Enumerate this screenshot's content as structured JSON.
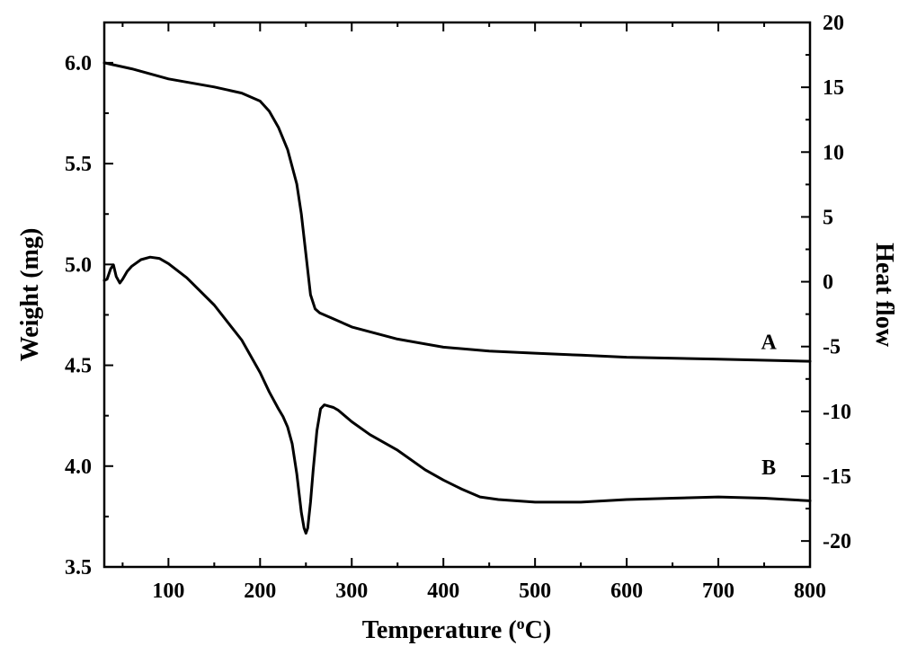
{
  "chart_data": {
    "type": "line",
    "xlabel": "Temperature (",
    "xlabel_sup": "o",
    "xlabel_end": "C)",
    "ylabel_left": "Weight (mg)",
    "ylabel_right": "Heat flow",
    "xlim": [
      30,
      800
    ],
    "ylim_left": [
      3.5,
      6.2
    ],
    "ylim_right": [
      -22,
      20
    ],
    "x_ticks": [
      100,
      200,
      300,
      400,
      500,
      600,
      700,
      800
    ],
    "x_tick_labels": [
      "100",
      "200",
      "300",
      "400",
      "500",
      "600",
      "700",
      "800"
    ],
    "y_left_ticks": [
      3.5,
      4.0,
      4.5,
      5.0,
      5.5,
      6.0
    ],
    "y_left_tick_labels": [
      "3.5",
      "4.0",
      "4.5",
      "5.0",
      "5.5",
      "6.0"
    ],
    "y_right_ticks": [
      -20,
      -15,
      -10,
      -5,
      0,
      5,
      10,
      15,
      20
    ],
    "y_right_tick_labels": [
      "-20",
      "-15",
      "-10",
      "-5",
      "0",
      "5",
      "10",
      "15",
      "20"
    ],
    "grid": false,
    "series": [
      {
        "name": "A",
        "axis": "left",
        "x": [
          30,
          60,
          100,
          150,
          180,
          200,
          210,
          220,
          230,
          240,
          245,
          250,
          255,
          260,
          265,
          280,
          300,
          350,
          400,
          450,
          500,
          550,
          600,
          700,
          800
        ],
        "y": [
          6.0,
          5.97,
          5.92,
          5.88,
          5.85,
          5.81,
          5.76,
          5.68,
          5.57,
          5.4,
          5.25,
          5.05,
          4.85,
          4.78,
          4.76,
          4.73,
          4.69,
          4.63,
          4.59,
          4.57,
          4.56,
          4.55,
          4.54,
          4.53,
          4.52
        ]
      },
      {
        "name": "B",
        "axis": "right",
        "x": [
          30,
          33,
          37,
          40,
          43,
          47,
          50,
          55,
          60,
          70,
          80,
          90,
          100,
          120,
          150,
          180,
          200,
          210,
          220,
          225,
          230,
          235,
          240,
          245,
          248,
          250,
          252,
          255,
          258,
          262,
          266,
          270,
          275,
          280,
          285,
          300,
          320,
          350,
          380,
          400,
          420,
          440,
          460,
          500,
          550,
          600,
          650,
          700,
          750,
          800
        ],
        "y": [
          0.1,
          0.2,
          1.0,
          1.3,
          0.4,
          -0.1,
          0.2,
          0.8,
          1.2,
          1.7,
          1.9,
          1.8,
          1.4,
          0.3,
          -1.8,
          -4.5,
          -7.0,
          -8.5,
          -9.8,
          -10.4,
          -11.2,
          -12.5,
          -14.8,
          -17.8,
          -19.0,
          -19.4,
          -19.0,
          -17.0,
          -14.5,
          -11.5,
          -9.8,
          -9.5,
          -9.6,
          -9.7,
          -9.9,
          -10.8,
          -11.8,
          -13.0,
          -14.5,
          -15.3,
          -16.0,
          -16.6,
          -16.8,
          -17.0,
          -17.0,
          -16.8,
          -16.7,
          -16.6,
          -16.7,
          -16.9
        ]
      }
    ],
    "annotations": [
      {
        "text": "A",
        "x": 755,
        "y_left": 4.58
      },
      {
        "text": "B",
        "x": 755,
        "y_left": 3.96
      }
    ]
  }
}
